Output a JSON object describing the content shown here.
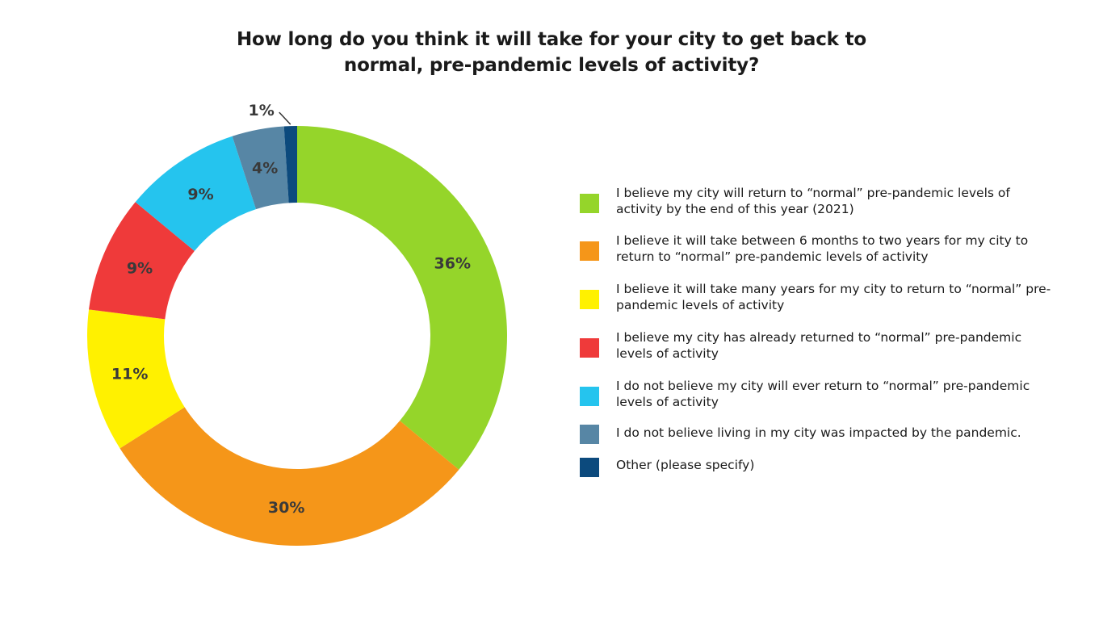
{
  "chart_data": {
    "type": "pie",
    "title_lines": [
      "How long do you think it will take for your city to get back to",
      "normal, pre-pandemic levels of activity?"
    ],
    "donut": true,
    "legend_position": "right",
    "slices": [
      {
        "label": "I believe my city will return to “normal” pre-pandemic levels of activity by the end of this year (2021)",
        "value": 36,
        "display": "36%",
        "color": "#95d52a"
      },
      {
        "label": "I believe it will take between 6 months to two years for my city to return to “normal” pre-pandemic levels of activity",
        "value": 30,
        "display": "30%",
        "color": "#f59619"
      },
      {
        "label": "I believe it will take many years for my city to return to “normal” pre-pandemic levels of activity",
        "value": 11,
        "display": "11%",
        "color": "#fff100"
      },
      {
        "label": "I believe my city has already returned to “normal” pre-pandemic levels of activity",
        "value": 9,
        "display": "9%",
        "color": "#ef3a3a"
      },
      {
        "label": "I do not believe my city will ever return to “normal” pre-pandemic levels of activity",
        "value": 9,
        "display": "9%",
        "color": "#25c4ee"
      },
      {
        "label": "I do not believe living in my city was impacted by the pandemic.",
        "value": 4,
        "display": "4%",
        "color": "#5786a5"
      },
      {
        "label": "Other (please specify)",
        "value": 1,
        "display": "1%",
        "color": "#0c4a7d"
      }
    ]
  }
}
